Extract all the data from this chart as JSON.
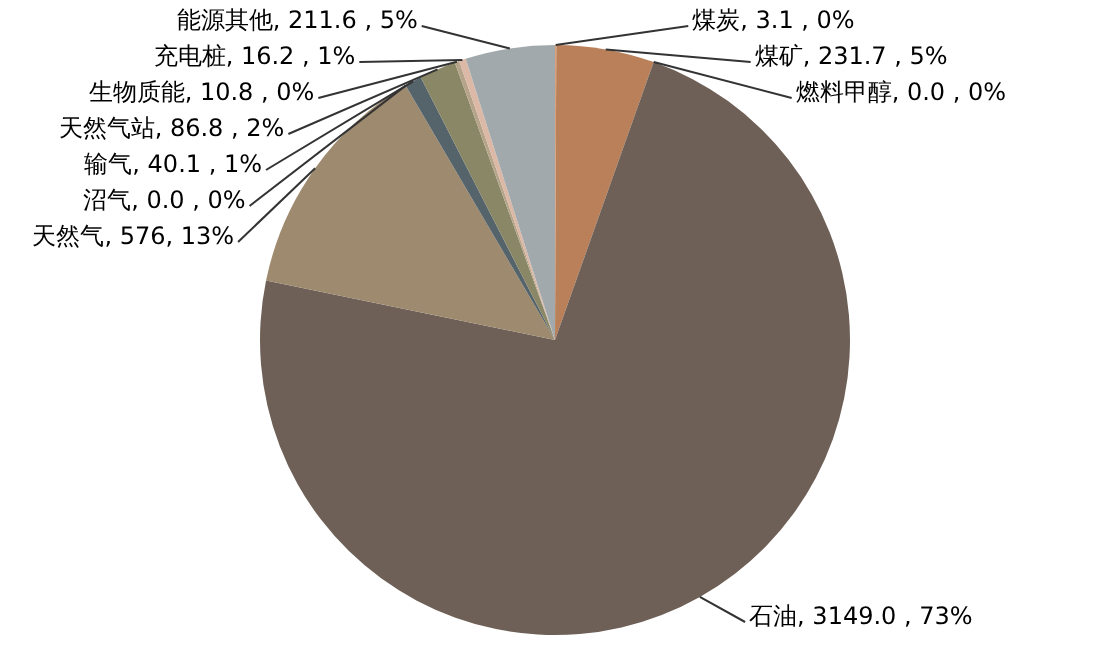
{
  "chart_data": {
    "type": "pie",
    "categories": [
      "煤炭",
      "煤矿",
      "燃料甲醇",
      "石油",
      "天然气",
      "沼气",
      "输气",
      "天然气站",
      "生物质能",
      "充电桩",
      "能源其他"
    ],
    "values": [
      3.1,
      231.7,
      0.0,
      3149.0,
      576,
      0.0,
      40.1,
      86.8,
      10.8,
      16.2,
      211.6
    ],
    "colors": [
      "#d9a07a",
      "#b9805a",
      "#8c8c8c",
      "#6e6057",
      "#9e8a6e",
      "#c9b89a",
      "#55636b",
      "#8a8767",
      "#b5a48a",
      "#dcb8a6",
      "#a2a9ac"
    ],
    "value_labels": [
      ", 3.1 , 0%",
      ", 231.7 , 5%",
      ", 0.0 , 0%",
      ", 3149.0 , 73%",
      ", 576, 13%",
      ", 0.0 , 0%",
      ", 40.1 , 1%",
      ", 86.8 , 2%",
      ", 10.8 , 0%",
      ", 16.2 , 1%",
      ", 211.6 , 5%"
    ],
    "legend": false
  }
}
